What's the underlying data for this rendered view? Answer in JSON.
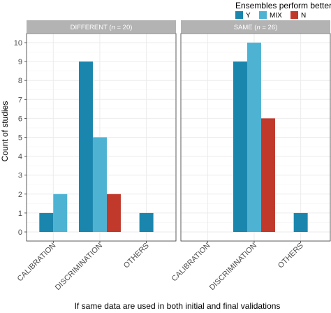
{
  "chart_data": {
    "type": "bar",
    "xlabel": "If same data are used in both initial and final validations",
    "ylabel": "Count of studies",
    "ylim": [
      0,
      10
    ],
    "yticks": [
      0,
      1,
      2,
      3,
      4,
      5,
      6,
      7,
      8,
      9,
      10
    ],
    "categories": [
      "CALIBRATION",
      "DISCRIMINATION",
      "OTHERS"
    ],
    "legend": {
      "title": "Ensembles perform better",
      "position": "top-right",
      "entries": [
        {
          "name": "Y",
          "color": "#1a86ad"
        },
        {
          "name": "MIX",
          "color": "#4eb3d3"
        },
        {
          "name": "N",
          "color": "#c0392b"
        }
      ]
    },
    "panels": [
      {
        "strip_prefix": "DIFFERENT (",
        "strip_n_var": "n",
        "strip_suffix": " = 20)",
        "series": [
          {
            "name": "Y",
            "values": [
              1,
              9,
              1
            ]
          },
          {
            "name": "MIX",
            "values": [
              2,
              5,
              null
            ]
          },
          {
            "name": "N",
            "values": [
              null,
              2,
              null
            ]
          }
        ]
      },
      {
        "strip_prefix": "SAME (",
        "strip_n_var": "n",
        "strip_suffix": " = 26)",
        "series": [
          {
            "name": "Y",
            "values": [
              null,
              9,
              1
            ]
          },
          {
            "name": "MIX",
            "values": [
              null,
              10,
              null
            ]
          },
          {
            "name": "N",
            "values": [
              null,
              6,
              null
            ]
          }
        ]
      }
    ],
    "grid": true
  }
}
